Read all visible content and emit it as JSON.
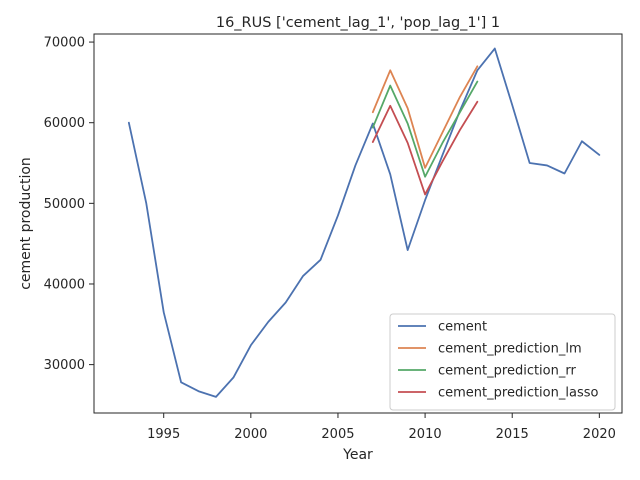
{
  "chart_data": {
    "type": "line",
    "title": "16_RUS ['cement_lag_1', 'pop_lag_1'] 1",
    "xlabel": "Year",
    "ylabel": "cement production",
    "xlim": [
      1991,
      2021.3
    ],
    "ylim": [
      24000,
      71000
    ],
    "xticks": [
      1995,
      2000,
      2005,
      2010,
      2015,
      2020
    ],
    "yticks": [
      30000,
      40000,
      50000,
      60000,
      70000
    ],
    "grid": false,
    "legend_position": "lower-right",
    "series": [
      {
        "name": "cement",
        "color": "#4c72b0",
        "x": [
          1993,
          1994,
          1995,
          1996,
          1997,
          1998,
          1999,
          2000,
          2001,
          2002,
          2003,
          2004,
          2005,
          2006,
          2007,
          2008,
          2009,
          2010,
          2011,
          2012,
          2013,
          2014,
          2015,
          2016,
          2017,
          2018,
          2019,
          2020
        ],
        "y": [
          60000,
          50000,
          36500,
          27800,
          26700,
          26000,
          28400,
          32400,
          35300,
          37700,
          41000,
          43000,
          48500,
          54700,
          59900,
          53600,
          44200,
          50400,
          56000,
          61500,
          66500,
          69200,
          62200,
          55000,
          54700,
          53700,
          57700,
          56000
        ]
      },
      {
        "name": "cement_prediction_lm",
        "color": "#dd8452",
        "x": [
          2007,
          2008,
          2009,
          2010,
          2011,
          2012,
          2013
        ],
        "y": [
          61300,
          66500,
          61800,
          54400,
          58800,
          63200,
          67000
        ]
      },
      {
        "name": "cement_prediction_rr",
        "color": "#55a868",
        "x": [
          2007,
          2008,
          2009,
          2010,
          2011,
          2012,
          2013
        ],
        "y": [
          59400,
          64600,
          59900,
          53300,
          57500,
          61300,
          65100
        ]
      },
      {
        "name": "cement_prediction_lasso",
        "color": "#c44e52",
        "x": [
          2007,
          2008,
          2009,
          2010,
          2011,
          2012,
          2013
        ],
        "y": [
          57600,
          62100,
          57500,
          51100,
          55200,
          59100,
          62600
        ]
      }
    ]
  }
}
